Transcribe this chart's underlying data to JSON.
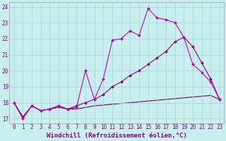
{
  "xlabel": "Windchill (Refroidissement éolien,°C)",
  "bg_color": "#c8eeee",
  "grid_color": "#a8d8d8",
  "line_color1": "#bb00bb",
  "line_color2": "#880088",
  "line_color3": "#660066",
  "xlim": [
    -0.5,
    23.5
  ],
  "ylim": [
    16.7,
    24.3
  ],
  "yticks": [
    17,
    18,
    19,
    20,
    21,
    22,
    23,
    24
  ],
  "xticks": [
    0,
    1,
    2,
    3,
    4,
    5,
    6,
    7,
    8,
    9,
    10,
    11,
    12,
    13,
    14,
    15,
    16,
    17,
    18,
    19,
    20,
    21,
    22,
    23
  ],
  "line1_x": [
    0,
    1,
    2,
    3,
    4,
    5,
    6,
    7,
    8,
    9,
    10,
    11,
    12,
    13,
    14,
    15,
    16,
    17,
    18,
    19,
    20,
    21,
    22,
    23
  ],
  "line1_y": [
    18.0,
    17.0,
    17.8,
    17.5,
    17.6,
    17.8,
    17.6,
    17.7,
    20.0,
    18.2,
    19.5,
    21.9,
    22.0,
    22.5,
    22.2,
    23.9,
    23.3,
    23.2,
    23.0,
    22.1,
    20.4,
    19.9,
    19.3,
    18.2
  ],
  "line2_x": [
    0,
    1,
    2,
    3,
    4,
    5,
    6,
    7,
    8,
    9,
    10,
    11,
    12,
    13,
    14,
    15,
    16,
    17,
    18,
    19,
    20,
    21,
    22,
    23
  ],
  "line2_y": [
    18.0,
    17.1,
    17.8,
    17.5,
    17.6,
    17.8,
    17.6,
    17.8,
    18.0,
    18.2,
    18.5,
    19.0,
    19.3,
    19.7,
    20.0,
    20.4,
    20.8,
    21.2,
    21.8,
    22.1,
    21.5,
    20.5,
    19.5,
    18.2
  ],
  "line3_x": [
    0,
    1,
    2,
    3,
    4,
    5,
    6,
    7,
    8,
    9,
    10,
    11,
    12,
    13,
    14,
    15,
    16,
    17,
    18,
    19,
    20,
    21,
    22,
    23
  ],
  "line3_y": [
    18.0,
    17.1,
    17.8,
    17.5,
    17.6,
    17.7,
    17.6,
    17.6,
    17.7,
    17.8,
    17.85,
    17.9,
    17.95,
    18.0,
    18.05,
    18.1,
    18.15,
    18.2,
    18.25,
    18.3,
    18.35,
    18.4,
    18.45,
    18.2
  ],
  "marker": "D",
  "markersize": 2.0,
  "linewidth": 0.8,
  "xlabel_fontsize": 6.5,
  "tick_fontsize": 5.5,
  "text_color": "#880088"
}
